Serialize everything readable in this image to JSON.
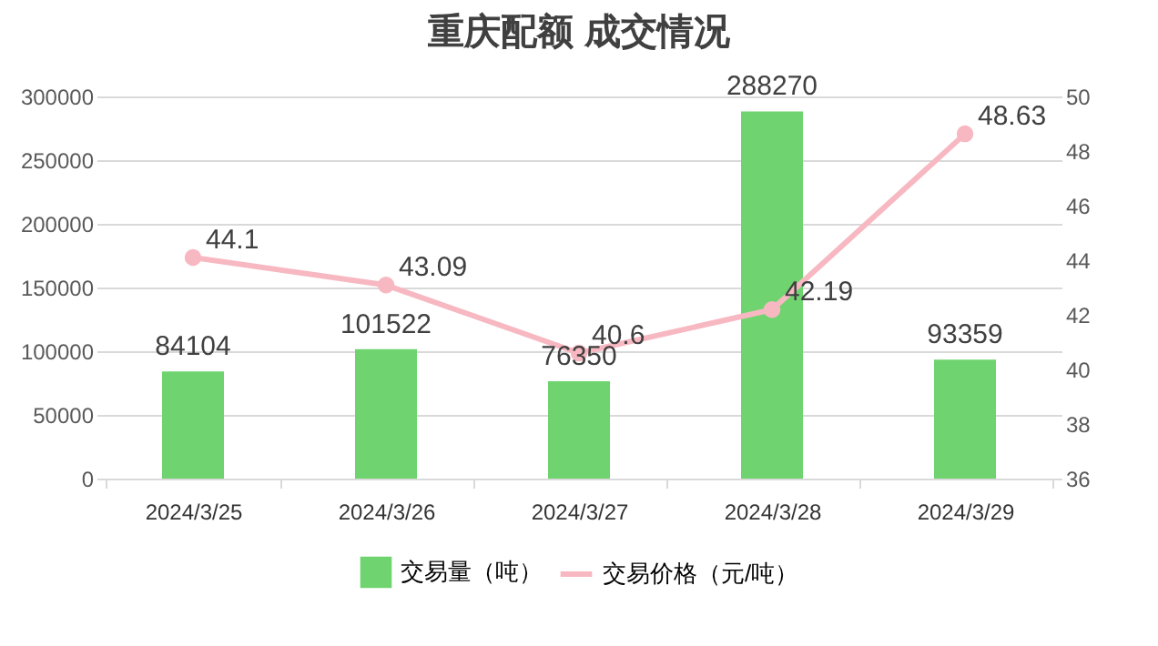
{
  "chart_data": {
    "type": "bar",
    "title": "重庆配额 成交情况",
    "categories": [
      "2024/3/25",
      "2024/3/26",
      "2024/3/27",
      "2024/3/28",
      "2024/3/29"
    ],
    "series": [
      {
        "name": "交易量（吨）",
        "color": "#6fd46f",
        "values": [
          84104,
          101522,
          76350,
          288270,
          93359
        ]
      },
      {
        "name": "交易价格（元/吨）",
        "type": "line",
        "axis": "y2",
        "color": "#f7b8c2",
        "values": [
          44.1,
          43.09,
          40.6,
          42.19,
          48.63
        ]
      }
    ],
    "ylim": [
      0,
      300000
    ],
    "yticks": [
      0,
      50000,
      100000,
      150000,
      200000,
      250000,
      300000
    ],
    "y2lim": [
      36,
      50
    ],
    "y2ticks": [
      36,
      38,
      40,
      42,
      44,
      46,
      48,
      50
    ],
    "grid": "y",
    "legend": "bottom",
    "marker": "circle",
    "line_style": "solid",
    "data_labels": true
  }
}
